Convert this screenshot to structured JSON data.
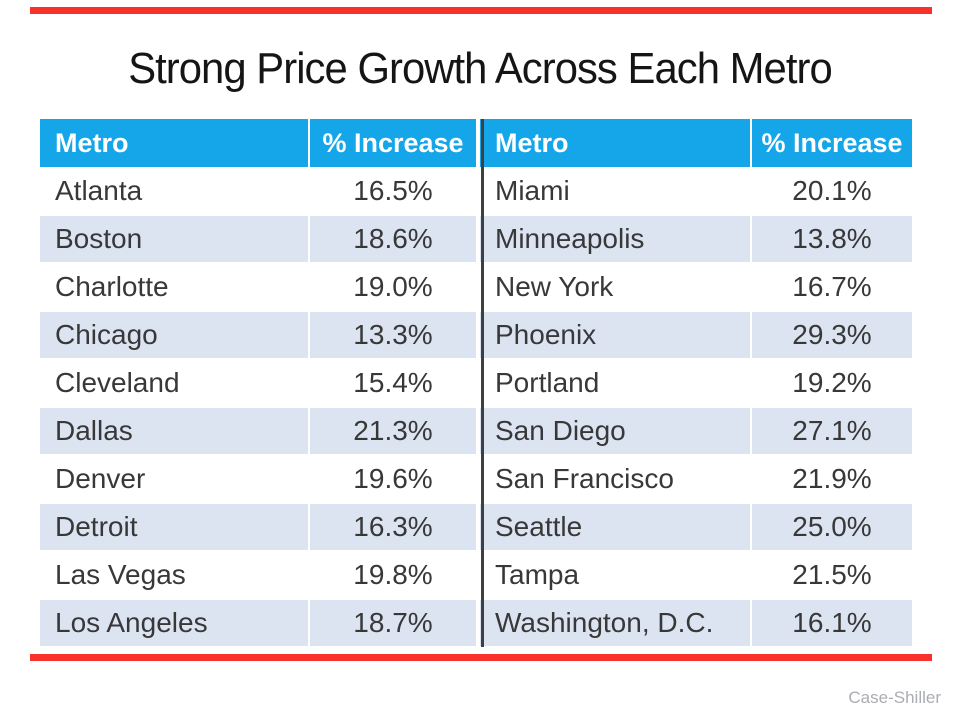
{
  "slide": {
    "title": "Strong Price Growth Across Each Metro",
    "source_credit": "Case-Shiller"
  },
  "colors": {
    "accent_red": "#F8322A",
    "header_bg": "#14A6E8",
    "band_bg": "#DCE4F2",
    "divider": "#3F3F3F",
    "header_text": "#FFFFFF",
    "body_text": "#383838",
    "source_text": "#AAADB2"
  },
  "table": {
    "headers": [
      "Metro",
      "% Increase",
      "Metro",
      "% Increase"
    ],
    "rows": [
      [
        "Atlanta",
        "16.5%",
        "Miami",
        "20.1%"
      ],
      [
        "Boston",
        "18.6%",
        "Minneapolis",
        "13.8%"
      ],
      [
        "Charlotte",
        "19.0%",
        "New York",
        "16.7%"
      ],
      [
        "Chicago",
        "13.3%",
        "Phoenix",
        "29.3%"
      ],
      [
        "Cleveland",
        "15.4%",
        "Portland",
        "19.2%"
      ],
      [
        "Dallas",
        "21.3%",
        "San Diego",
        "27.1%"
      ],
      [
        "Denver",
        "19.6%",
        "San Francisco",
        "21.9%"
      ],
      [
        "Detroit",
        "16.3%",
        "Seattle",
        "25.0%"
      ],
      [
        "Las Vegas",
        "19.8%",
        "Tampa",
        "21.5%"
      ],
      [
        "Los Angeles",
        "18.7%",
        "Washington, D.C.",
        "16.1%"
      ]
    ]
  },
  "chart_data": {
    "type": "table",
    "title": "Strong Price Growth Across Each Metro",
    "columns": [
      "Metro",
      "% Increase"
    ],
    "source": "Case-Shiller",
    "records": [
      {
        "metro": "Atlanta",
        "increase_pct": 16.5
      },
      {
        "metro": "Boston",
        "increase_pct": 18.6
      },
      {
        "metro": "Charlotte",
        "increase_pct": 19.0
      },
      {
        "metro": "Chicago",
        "increase_pct": 13.3
      },
      {
        "metro": "Cleveland",
        "increase_pct": 15.4
      },
      {
        "metro": "Dallas",
        "increase_pct": 21.3
      },
      {
        "metro": "Denver",
        "increase_pct": 19.6
      },
      {
        "metro": "Detroit",
        "increase_pct": 16.3
      },
      {
        "metro": "Las Vegas",
        "increase_pct": 19.8
      },
      {
        "metro": "Los Angeles",
        "increase_pct": 18.7
      },
      {
        "metro": "Miami",
        "increase_pct": 20.1
      },
      {
        "metro": "Minneapolis",
        "increase_pct": 13.8
      },
      {
        "metro": "New York",
        "increase_pct": 16.7
      },
      {
        "metro": "Phoenix",
        "increase_pct": 29.3
      },
      {
        "metro": "Portland",
        "increase_pct": 19.2
      },
      {
        "metro": "San Diego",
        "increase_pct": 27.1
      },
      {
        "metro": "San Francisco",
        "increase_pct": 21.9
      },
      {
        "metro": "Seattle",
        "increase_pct": 25.0
      },
      {
        "metro": "Tampa",
        "increase_pct": 21.5
      },
      {
        "metro": "Washington, D.C.",
        "increase_pct": 16.1
      }
    ]
  }
}
